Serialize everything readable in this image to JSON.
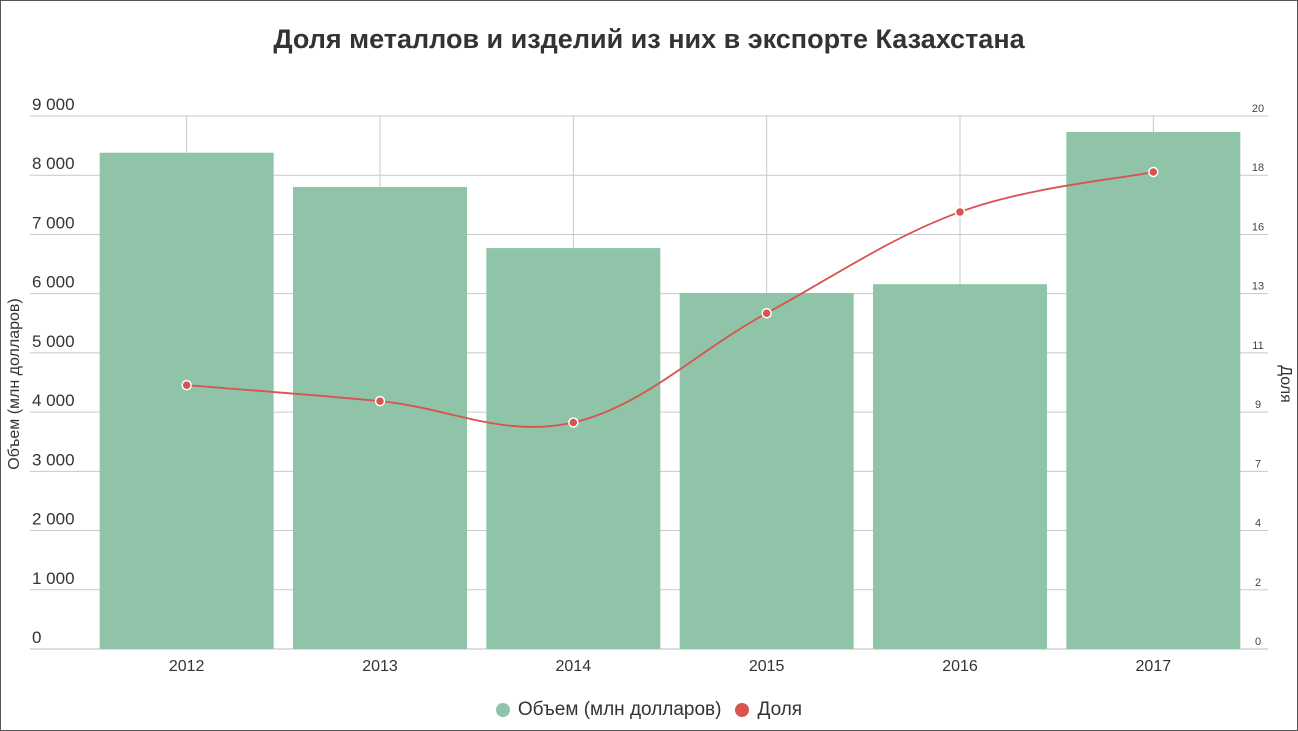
{
  "chart_data": {
    "type": "bar",
    "title": "Доля металлов и изделий из них в экспорте Казахстана",
    "categories": [
      "2012",
      "2013",
      "2014",
      "2015",
      "2016",
      "2017"
    ],
    "series": [
      {
        "name": "Объем (млн долларов)",
        "type": "bar",
        "axis": "left",
        "color": "#8fc4a8",
        "values": [
          8380,
          7800,
          6770,
          6010,
          6160,
          8730
        ]
      },
      {
        "name": "Доля",
        "type": "line",
        "axis": "right",
        "color": "#d9534f",
        "values": [
          9.9,
          9.3,
          8.5,
          12.6,
          16.4,
          17.9
        ]
      }
    ],
    "y_left": {
      "label": "Объем (млн долларов)",
      "range": [
        0,
        9000
      ],
      "ticks": [
        0,
        1000,
        2000,
        3000,
        4000,
        5000,
        6000,
        7000,
        8000,
        9000
      ],
      "tick_labels": [
        "0",
        "1 000",
        "2 000",
        "3 000",
        "4 000",
        "5 000",
        "6 000",
        "7 000",
        "8 000",
        "9 000"
      ]
    },
    "y_right": {
      "label": "Доля",
      "range": [
        0,
        20
      ],
      "tick_labels": [
        "0",
        "2",
        "4",
        "7",
        "9",
        "11",
        "13",
        "16",
        "18",
        "20"
      ]
    },
    "grid": true,
    "legend_position": "bottom"
  }
}
